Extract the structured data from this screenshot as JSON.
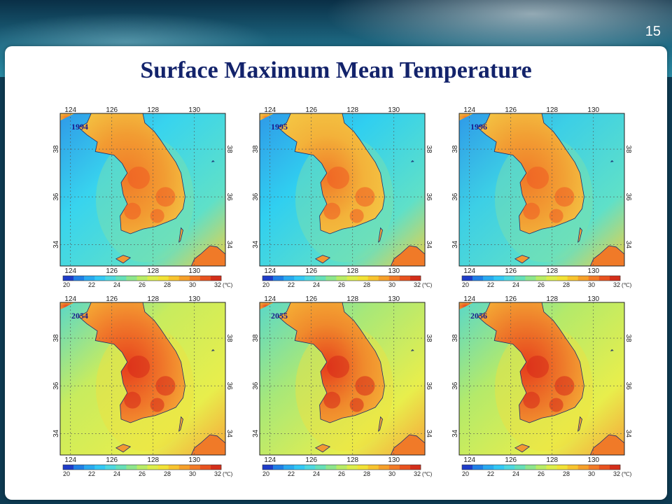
{
  "slide": {
    "title": "Surface Maximum Mean Temperature",
    "page_number": "15"
  },
  "colors": {
    "title": "#13236b",
    "year_label": "#1a1a8c"
  },
  "map_axes": {
    "longitude_ticks": [
      "124",
      "126",
      "128",
      "130"
    ],
    "latitude_ticks": [
      "38",
      "36",
      "34"
    ],
    "extent": {
      "lon": [
        123.5,
        131.5
      ],
      "lat": [
        33.1,
        39.5
      ]
    }
  },
  "colorbar": {
    "tick_labels": [
      "20",
      "22",
      "24",
      "26",
      "28",
      "30",
      "32"
    ],
    "unit": "(℃)",
    "colors": [
      "#1e3cc8",
      "#1f7fe6",
      "#29aaf0",
      "#33c8f5",
      "#4dd8e0",
      "#66e0b8",
      "#8ee68c",
      "#b8ec66",
      "#dcee4a",
      "#f2e236",
      "#f8c42e",
      "#f6a02a",
      "#f27a26",
      "#e8521f",
      "#d42e1a"
    ]
  },
  "maps": [
    {
      "year": "1994",
      "palette": "cool",
      "sea_color": "#38d4ee",
      "land_color": "#f29c32"
    },
    {
      "year": "1995",
      "palette": "cool",
      "sea_color": "#30cff0",
      "land_color": "#f3b23a"
    },
    {
      "year": "1996",
      "palette": "cool",
      "sea_color": "#3ccfe6",
      "land_color": "#f2a034"
    },
    {
      "year": "2054",
      "palette": "warm",
      "sea_color": "#c8ec5e",
      "land_color": "#f0782a"
    },
    {
      "year": "2055",
      "palette": "warm",
      "sea_color": "#a8e878",
      "land_color": "#f08a2c"
    },
    {
      "year": "2056",
      "palette": "warm",
      "sea_color": "#b4ea6a",
      "land_color": "#ee7a2a"
    }
  ]
}
